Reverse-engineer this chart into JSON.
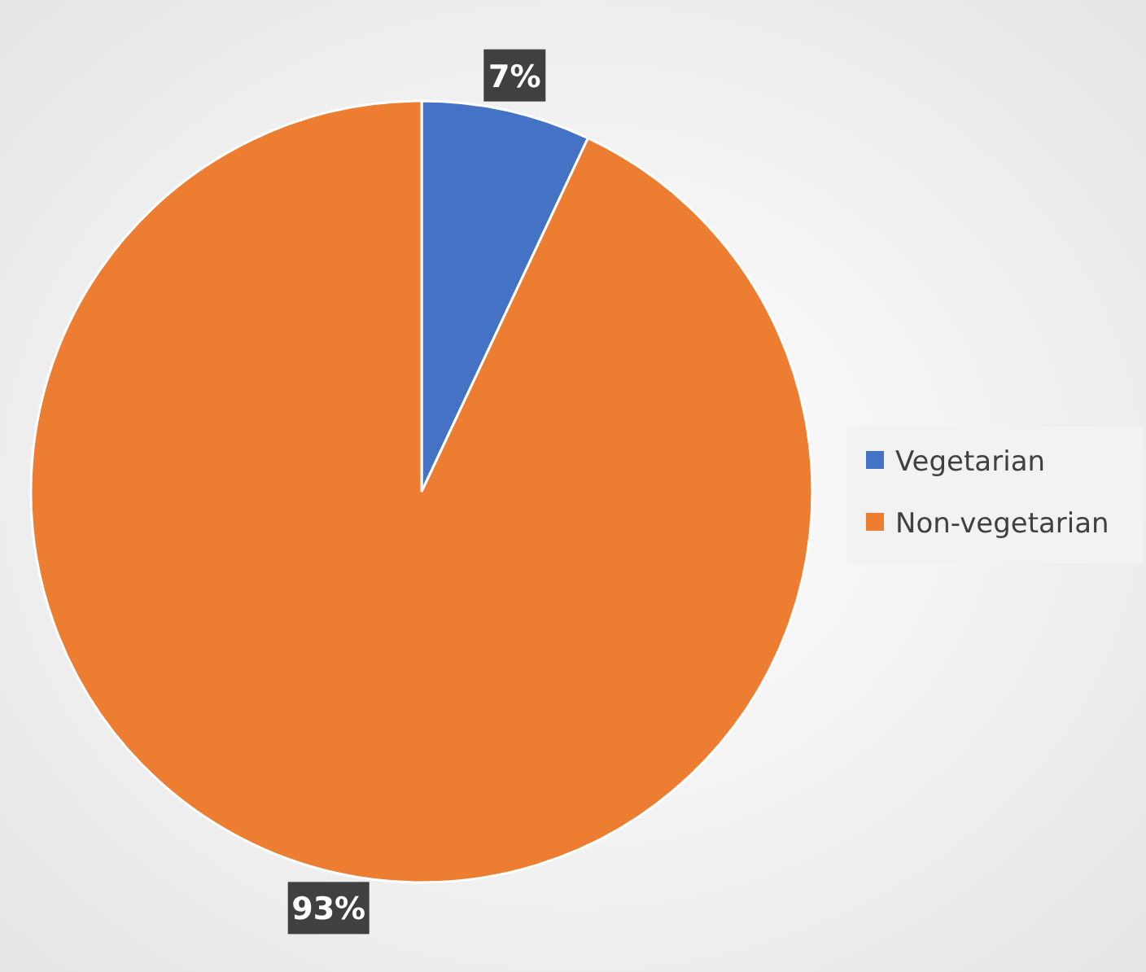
{
  "chart_data": {
    "type": "pie",
    "categories": [
      "Vegetarian",
      "Non-vegetarian"
    ],
    "values": [
      7,
      93
    ],
    "colors": [
      "#4472c4",
      "#ed7d31"
    ],
    "value_labels": [
      "7%",
      "93%"
    ],
    "legend": "right"
  }
}
